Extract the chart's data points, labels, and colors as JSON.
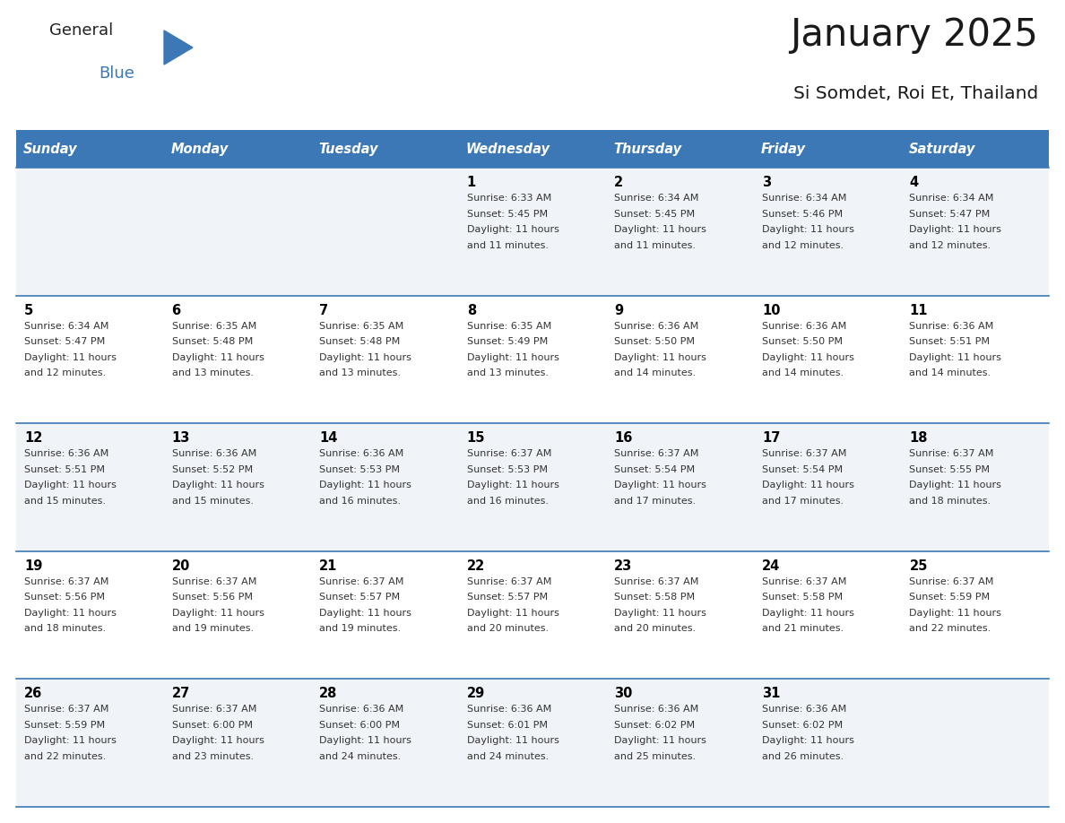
{
  "title": "January 2025",
  "subtitle": "Si Somdet, Roi Et, Thailand",
  "header_bg_color": "#3B78B5",
  "header_text_color": "#FFFFFF",
  "weekdays": [
    "Sunday",
    "Monday",
    "Tuesday",
    "Wednesday",
    "Thursday",
    "Friday",
    "Saturday"
  ],
  "row_bg_even": "#F0F4F8",
  "row_bg_odd": "#FFFFFF",
  "cell_border_color": "#3B78B5",
  "day_number_color": "#000000",
  "day_text_color": "#333333",
  "calendar": [
    [
      {
        "day": "",
        "sunrise": "",
        "sunset": "",
        "daylight": ""
      },
      {
        "day": "",
        "sunrise": "",
        "sunset": "",
        "daylight": ""
      },
      {
        "day": "",
        "sunrise": "",
        "sunset": "",
        "daylight": ""
      },
      {
        "day": "1",
        "sunrise": "6:33 AM",
        "sunset": "5:45 PM",
        "daylight_hours": "11",
        "daylight_mins": "11"
      },
      {
        "day": "2",
        "sunrise": "6:34 AM",
        "sunset": "5:45 PM",
        "daylight_hours": "11",
        "daylight_mins": "11"
      },
      {
        "day": "3",
        "sunrise": "6:34 AM",
        "sunset": "5:46 PM",
        "daylight_hours": "11",
        "daylight_mins": "12"
      },
      {
        "day": "4",
        "sunrise": "6:34 AM",
        "sunset": "5:47 PM",
        "daylight_hours": "11",
        "daylight_mins": "12"
      }
    ],
    [
      {
        "day": "5",
        "sunrise": "6:34 AM",
        "sunset": "5:47 PM",
        "daylight_hours": "11",
        "daylight_mins": "12"
      },
      {
        "day": "6",
        "sunrise": "6:35 AM",
        "sunset": "5:48 PM",
        "daylight_hours": "11",
        "daylight_mins": "13"
      },
      {
        "day": "7",
        "sunrise": "6:35 AM",
        "sunset": "5:48 PM",
        "daylight_hours": "11",
        "daylight_mins": "13"
      },
      {
        "day": "8",
        "sunrise": "6:35 AM",
        "sunset": "5:49 PM",
        "daylight_hours": "11",
        "daylight_mins": "13"
      },
      {
        "day": "9",
        "sunrise": "6:36 AM",
        "sunset": "5:50 PM",
        "daylight_hours": "11",
        "daylight_mins": "14"
      },
      {
        "day": "10",
        "sunrise": "6:36 AM",
        "sunset": "5:50 PM",
        "daylight_hours": "11",
        "daylight_mins": "14"
      },
      {
        "day": "11",
        "sunrise": "6:36 AM",
        "sunset": "5:51 PM",
        "daylight_hours": "11",
        "daylight_mins": "14"
      }
    ],
    [
      {
        "day": "12",
        "sunrise": "6:36 AM",
        "sunset": "5:51 PM",
        "daylight_hours": "11",
        "daylight_mins": "15"
      },
      {
        "day": "13",
        "sunrise": "6:36 AM",
        "sunset": "5:52 PM",
        "daylight_hours": "11",
        "daylight_mins": "15"
      },
      {
        "day": "14",
        "sunrise": "6:36 AM",
        "sunset": "5:53 PM",
        "daylight_hours": "11",
        "daylight_mins": "16"
      },
      {
        "day": "15",
        "sunrise": "6:37 AM",
        "sunset": "5:53 PM",
        "daylight_hours": "11",
        "daylight_mins": "16"
      },
      {
        "day": "16",
        "sunrise": "6:37 AM",
        "sunset": "5:54 PM",
        "daylight_hours": "11",
        "daylight_mins": "17"
      },
      {
        "day": "17",
        "sunrise": "6:37 AM",
        "sunset": "5:54 PM",
        "daylight_hours": "11",
        "daylight_mins": "17"
      },
      {
        "day": "18",
        "sunrise": "6:37 AM",
        "sunset": "5:55 PM",
        "daylight_hours": "11",
        "daylight_mins": "18"
      }
    ],
    [
      {
        "day": "19",
        "sunrise": "6:37 AM",
        "sunset": "5:56 PM",
        "daylight_hours": "11",
        "daylight_mins": "18"
      },
      {
        "day": "20",
        "sunrise": "6:37 AM",
        "sunset": "5:56 PM",
        "daylight_hours": "11",
        "daylight_mins": "19"
      },
      {
        "day": "21",
        "sunrise": "6:37 AM",
        "sunset": "5:57 PM",
        "daylight_hours": "11",
        "daylight_mins": "19"
      },
      {
        "day": "22",
        "sunrise": "6:37 AM",
        "sunset": "5:57 PM",
        "daylight_hours": "11",
        "daylight_mins": "20"
      },
      {
        "day": "23",
        "sunrise": "6:37 AM",
        "sunset": "5:58 PM",
        "daylight_hours": "11",
        "daylight_mins": "20"
      },
      {
        "day": "24",
        "sunrise": "6:37 AM",
        "sunset": "5:58 PM",
        "daylight_hours": "11",
        "daylight_mins": "21"
      },
      {
        "day": "25",
        "sunrise": "6:37 AM",
        "sunset": "5:59 PM",
        "daylight_hours": "11",
        "daylight_mins": "22"
      }
    ],
    [
      {
        "day": "26",
        "sunrise": "6:37 AM",
        "sunset": "5:59 PM",
        "daylight_hours": "11",
        "daylight_mins": "22"
      },
      {
        "day": "27",
        "sunrise": "6:37 AM",
        "sunset": "6:00 PM",
        "daylight_hours": "11",
        "daylight_mins": "23"
      },
      {
        "day": "28",
        "sunrise": "6:36 AM",
        "sunset": "6:00 PM",
        "daylight_hours": "11",
        "daylight_mins": "24"
      },
      {
        "day": "29",
        "sunrise": "6:36 AM",
        "sunset": "6:01 PM",
        "daylight_hours": "11",
        "daylight_mins": "24"
      },
      {
        "day": "30",
        "sunrise": "6:36 AM",
        "sunset": "6:02 PM",
        "daylight_hours": "11",
        "daylight_mins": "25"
      },
      {
        "day": "31",
        "sunrise": "6:36 AM",
        "sunset": "6:02 PM",
        "daylight_hours": "11",
        "daylight_mins": "26"
      },
      {
        "day": "",
        "sunrise": "",
        "sunset": "",
        "daylight_hours": "",
        "daylight_mins": ""
      }
    ]
  ],
  "logo_general_color": "#222222",
  "logo_blue_color": "#3B78B5"
}
